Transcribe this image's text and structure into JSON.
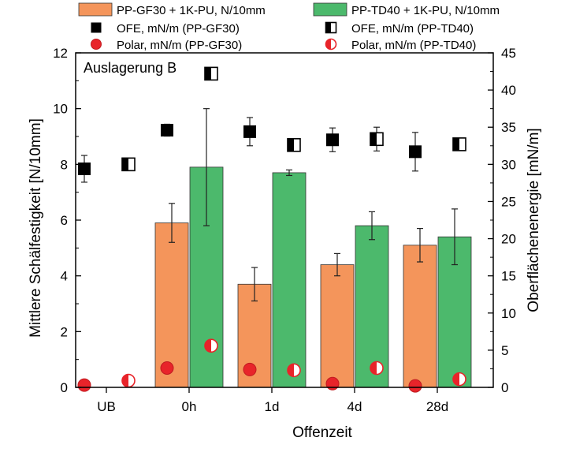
{
  "chart_data": {
    "type": "bar",
    "annotation": "Auslagerung B",
    "xlabel": "Offenzeit",
    "ylabel": "Mittlere Schälfestigkeit [N/10mm]",
    "y2label": "Oberflächenenergie [mN/m]",
    "categories": [
      "UB",
      "0h",
      "1d",
      "4d",
      "28d"
    ],
    "ylim": [
      0,
      12
    ],
    "y2lim": [
      0,
      45
    ],
    "yticks": [
      0,
      2,
      4,
      6,
      8,
      10,
      12
    ],
    "y2ticks": [
      0,
      5,
      10,
      15,
      20,
      25,
      30,
      35,
      40,
      45
    ],
    "bar_series": [
      {
        "name": "PP-GF30 + 1K-PU, N/10mm",
        "color": "#f4955b",
        "values": [
          null,
          5.9,
          3.7,
          4.4,
          5.1
        ],
        "errors": [
          null,
          0.7,
          0.6,
          0.4,
          0.6
        ]
      },
      {
        "name": "PP-TD40 + 1K-PU, N/10mm",
        "color": "#4cb96c",
        "values": [
          null,
          7.9,
          7.7,
          5.8,
          5.4
        ],
        "errors": [
          null,
          2.1,
          0.1,
          0.5,
          1.0
        ]
      }
    ],
    "marker_series": [
      {
        "name": "OFE, mN/m (PP-GF30)",
        "marker": "square-filled",
        "axis": "right",
        "values": [
          29.4,
          34.6,
          34.4,
          33.3,
          31.7
        ],
        "errors": [
          1.8,
          0.8,
          1.9,
          1.6,
          2.6
        ]
      },
      {
        "name": "OFE, mN/m (PP-TD40)",
        "marker": "square-half",
        "axis": "right",
        "values": [
          30.0,
          42.2,
          32.6,
          33.4,
          32.7
        ],
        "errors": [
          0.8,
          0.7,
          0.3,
          1.6,
          0.7
        ]
      },
      {
        "name": "Polar, mN/m (PP-GF30)",
        "marker": "circle-filled",
        "axis": "right",
        "values": [
          0.3,
          2.6,
          2.4,
          0.5,
          0.2
        ],
        "errors": [
          0.1,
          0.3,
          0.4,
          0.1,
          0.1
        ]
      },
      {
        "name": "Polar, mN/m (PP-TD40)",
        "marker": "circle-half",
        "axis": "right",
        "values": [
          0.9,
          5.6,
          2.3,
          2.6,
          1.1
        ],
        "errors": [
          0.1,
          0.2,
          0.2,
          0.2,
          0.2
        ]
      }
    ],
    "legend_position": "top"
  }
}
